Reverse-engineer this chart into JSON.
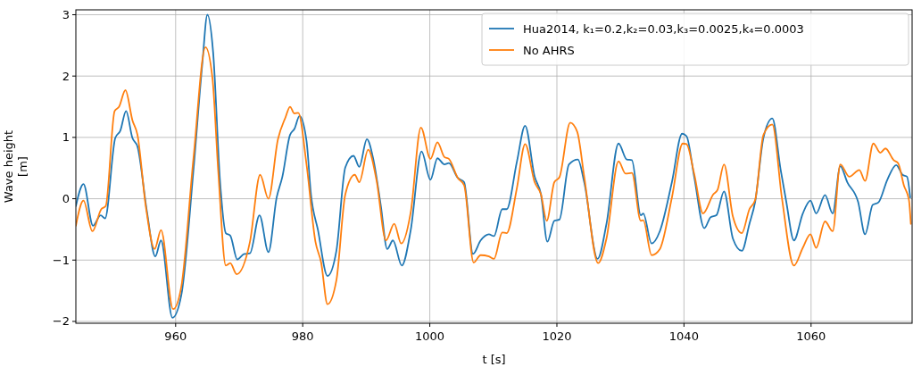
{
  "chart_data": {
    "type": "line",
    "xlabel": "t [s]",
    "ylabel": "Wave height\n[m]",
    "xlim": [
      944.3,
      1075.9
    ],
    "ylim": [
      -2.03,
      3.08
    ],
    "xticks": [
      960,
      980,
      1000,
      1020,
      1040,
      1060
    ],
    "yticks": [
      -2,
      -1,
      0,
      1,
      2,
      3
    ],
    "grid": true,
    "legend": "top right",
    "line_style": "solid",
    "marker": "none",
    "series": [
      {
        "name": "Hua2014, k₁=0.2,k₂=0.03,k₃=0.0025,k₄=0.0003",
        "color": "#1f77b4",
        "x": [
          944.3,
          945.5,
          947.0,
          948.2,
          948.9,
          950.5,
          951.3,
          952.2,
          953.2,
          954.0,
          955.5,
          956.8,
          957.7,
          959.5,
          960.9,
          962.8,
          964.2,
          965.0,
          965.9,
          967.0,
          967.9,
          968.6,
          969.7,
          970.8,
          971.7,
          973.2,
          974.6,
          975.9,
          976.8,
          978.0,
          978.7,
          979.5,
          980.6,
          981.3,
          982.4,
          983.9,
          985.3,
          986.7,
          988.0,
          988.9,
          990.1,
          991.1,
          992.3,
          993.3,
          994.2,
          995.6,
          997.0,
          998.7,
          1000.1,
          1001.2,
          1002.3,
          1003.0,
          1004.4,
          1005.4,
          1006.8,
          1008.0,
          1009.3,
          1010.1,
          1011.4,
          1012.1,
          1013.7,
          1015.0,
          1016.5,
          1017.5,
          1018.5,
          1019.6,
          1020.4,
          1021.9,
          1023.3,
          1024.3,
          1026.4,
          1027.8,
          1029.7,
          1031.0,
          1031.8,
          1033.2,
          1033.6,
          1034.9,
          1036.2,
          1038.1,
          1039.7,
          1040.4,
          1041.6,
          1043.2,
          1044.2,
          1045.1,
          1046.3,
          1047.7,
          1049.1,
          1050.3,
          1051.2,
          1052.5,
          1053.9,
          1055.2,
          1056.1,
          1057.3,
          1058.7,
          1059.9,
          1060.8,
          1062.2,
          1063.4,
          1064.6,
          1065.7,
          1067.4,
          1068.5,
          1069.7,
          1070.6,
          1072.0,
          1073.4,
          1074.4,
          1075.1,
          1075.6
        ],
        "values": [
          -0.12,
          0.24,
          -0.44,
          -0.27,
          -0.32,
          0.99,
          1.11,
          1.43,
          0.99,
          0.85,
          -0.22,
          -0.94,
          -0.68,
          -1.94,
          -1.57,
          0.46,
          2.2,
          3.0,
          2.39,
          0.27,
          -0.56,
          -0.6,
          -0.99,
          -0.9,
          -0.89,
          -0.27,
          -0.87,
          0.02,
          0.36,
          1.04,
          1.14,
          1.35,
          0.94,
          0.07,
          -0.51,
          -1.26,
          -0.85,
          0.51,
          0.7,
          0.52,
          0.97,
          0.65,
          -0.12,
          -0.82,
          -0.68,
          -1.09,
          -0.51,
          0.77,
          0.31,
          0.66,
          0.56,
          0.58,
          0.34,
          0.27,
          -0.9,
          -0.68,
          -0.58,
          -0.61,
          -0.17,
          -0.17,
          0.6,
          1.19,
          0.36,
          0.07,
          -0.7,
          -0.36,
          -0.34,
          0.56,
          0.64,
          0.27,
          -0.98,
          -0.41,
          0.9,
          0.64,
          0.63,
          -0.27,
          -0.24,
          -0.73,
          -0.53,
          0.27,
          1.06,
          1.02,
          0.36,
          -0.48,
          -0.3,
          -0.27,
          0.12,
          -0.65,
          -0.85,
          -0.41,
          -0.05,
          0.99,
          1.31,
          0.48,
          -0.05,
          -0.68,
          -0.24,
          -0.03,
          -0.24,
          0.06,
          -0.24,
          0.53,
          0.27,
          -0.05,
          -0.58,
          -0.1,
          -0.06,
          0.31,
          0.55,
          0.39,
          0.36,
          0.02
        ]
      },
      {
        "name": "No AHRS",
        "color": "#ff7f0e",
        "x": [
          944.3,
          945.5,
          946.9,
          948.3,
          949.0,
          950.4,
          951.1,
          952.1,
          953.2,
          954.0,
          955.3,
          956.7,
          957.7,
          959.6,
          960.9,
          962.8,
          964.7,
          965.8,
          966.7,
          967.9,
          968.6,
          969.6,
          971.7,
          973.3,
          974.6,
          976.1,
          977.3,
          978.0,
          978.7,
          979.3,
          980.6,
          982.0,
          982.9,
          983.9,
          985.3,
          986.7,
          988.2,
          988.9,
          990.3,
          991.6,
          993.1,
          994.4,
          995.5,
          997.0,
          998.6,
          1000.1,
          1001.2,
          1002.3,
          1003.0,
          1004.4,
          1005.4,
          1006.9,
          1008.0,
          1009.3,
          1010.1,
          1011.4,
          1012.1,
          1013.7,
          1015.0,
          1016.5,
          1017.5,
          1018.4,
          1019.6,
          1020.4,
          1022.1,
          1023.2,
          1024.3,
          1026.5,
          1027.8,
          1029.7,
          1030.8,
          1031.8,
          1033.2,
          1033.6,
          1034.9,
          1036.2,
          1038.1,
          1039.8,
          1040.4,
          1041.6,
          1043.0,
          1044.6,
          1045.3,
          1046.3,
          1047.7,
          1049.1,
          1050.3,
          1051.2,
          1052.5,
          1053.9,
          1055.4,
          1057.3,
          1058.7,
          1059.9,
          1060.8,
          1062.2,
          1063.4,
          1064.6,
          1066.0,
          1067.6,
          1068.5,
          1069.8,
          1070.9,
          1071.7,
          1073.0,
          1073.7,
          1074.6,
          1075.4,
          1075.7
        ],
        "values": [
          -0.44,
          -0.03,
          -0.53,
          -0.17,
          -0.12,
          1.43,
          1.5,
          1.77,
          1.28,
          1.04,
          -0.12,
          -0.82,
          -0.51,
          -1.8,
          -1.43,
          0.65,
          2.47,
          1.96,
          0.46,
          -1.09,
          -1.05,
          -1.23,
          -0.7,
          0.39,
          0.0,
          0.97,
          1.33,
          1.5,
          1.39,
          1.4,
          0.56,
          -0.7,
          -1.04,
          -1.72,
          -1.33,
          0.07,
          0.39,
          0.27,
          0.8,
          0.31,
          -0.68,
          -0.41,
          -0.73,
          -0.22,
          1.16,
          0.65,
          0.92,
          0.68,
          0.65,
          0.34,
          0.22,
          -1.04,
          -0.92,
          -0.94,
          -0.98,
          -0.55,
          -0.56,
          0.17,
          0.89,
          0.27,
          0.07,
          -0.36,
          0.27,
          0.35,
          1.24,
          1.09,
          0.36,
          -1.05,
          -0.65,
          0.61,
          0.41,
          0.42,
          -0.36,
          -0.35,
          -0.92,
          -0.82,
          0.02,
          0.9,
          0.89,
          0.41,
          -0.24,
          0.07,
          0.15,
          0.56,
          -0.29,
          -0.56,
          -0.17,
          -0.02,
          1.04,
          1.21,
          0.02,
          -1.09,
          -0.8,
          -0.58,
          -0.8,
          -0.37,
          -0.53,
          0.56,
          0.36,
          0.47,
          0.29,
          0.9,
          0.75,
          0.82,
          0.63,
          0.58,
          0.22,
          -0.02,
          -0.41
        ]
      }
    ]
  }
}
